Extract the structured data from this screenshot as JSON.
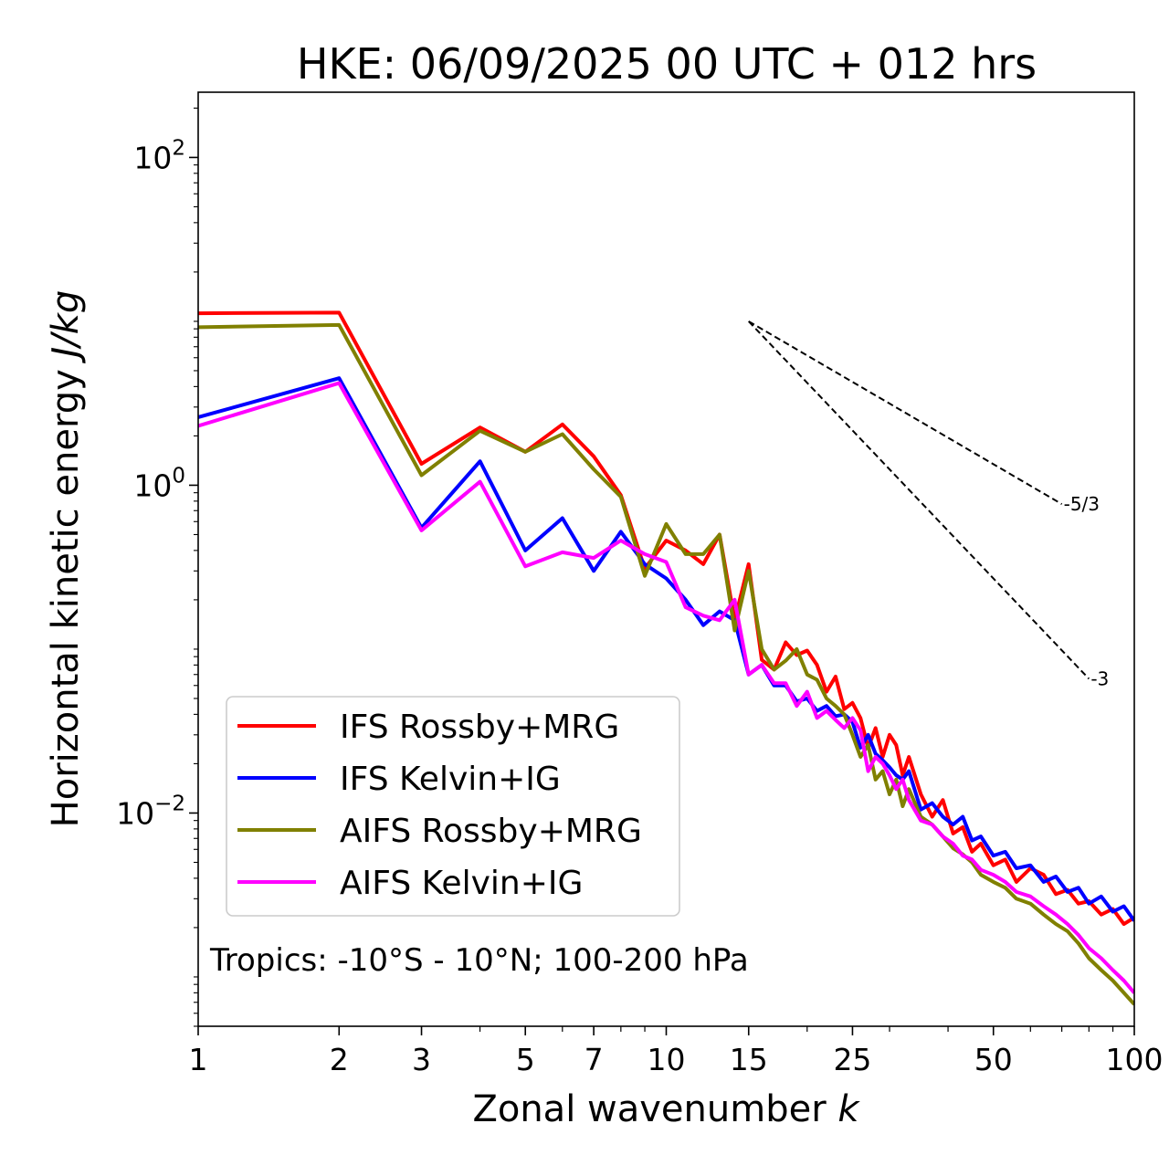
{
  "chart_data": {
    "type": "line",
    "title": "HKE: 06/09/2025 00 UTC + 012 hrs",
    "xlabel": "Zonal wavenumber",
    "xlabel_var": "k",
    "ylabel": "Horizontal kinetic energy",
    "ylabel_units": "J/kg",
    "xscale": "log",
    "yscale": "log",
    "xlim": [
      1,
      100
    ],
    "ylim": [
      0.0005,
      250
    ],
    "xticks": [
      1,
      2,
      3,
      5,
      7,
      10,
      15,
      25,
      50,
      100
    ],
    "xtick_labels": [
      "1",
      "2",
      "3",
      "5",
      "7",
      "10",
      "15",
      "25",
      "50",
      "100"
    ],
    "yticks": [
      {
        "value": 100,
        "base": "10",
        "exp": "2"
      },
      {
        "value": 1,
        "base": "10",
        "exp": "0"
      },
      {
        "value": 0.01,
        "base": "10",
        "exp": "−2"
      }
    ],
    "annotation": "Tropics: -10°S - 10°N; 100-200 hPa",
    "legend_position": "lower-left",
    "series": [
      {
        "name": "IFS Rossby+MRG",
        "color": "#ff0000",
        "points": [
          [
            1,
            11.2
          ],
          [
            2,
            11.3
          ],
          [
            3,
            1.35
          ],
          [
            4,
            2.25
          ],
          [
            5,
            1.6
          ],
          [
            6,
            2.35
          ],
          [
            7,
            1.5
          ],
          [
            8,
            0.87
          ],
          [
            9,
            0.31
          ],
          [
            10,
            0.46
          ],
          [
            11,
            0.4
          ],
          [
            12,
            0.33
          ],
          [
            13,
            0.5
          ],
          [
            14,
            0.15
          ],
          [
            15,
            0.33
          ],
          [
            16,
            0.086
          ],
          [
            17,
            0.075
          ],
          [
            18,
            0.11
          ],
          [
            19,
            0.092
          ],
          [
            20,
            0.098
          ],
          [
            21,
            0.08
          ],
          [
            22,
            0.055
          ],
          [
            23,
            0.068
          ],
          [
            24,
            0.043
          ],
          [
            25,
            0.047
          ],
          [
            26,
            0.038
          ],
          [
            27,
            0.025
          ],
          [
            28,
            0.033
          ],
          [
            29,
            0.022
          ],
          [
            30,
            0.03
          ],
          [
            31,
            0.026
          ],
          [
            32,
            0.017
          ],
          [
            33,
            0.022
          ],
          [
            35,
            0.013
          ],
          [
            37,
            0.0095
          ],
          [
            39,
            0.012
          ],
          [
            41,
            0.0075
          ],
          [
            43,
            0.0082
          ],
          [
            45,
            0.0058
          ],
          [
            47,
            0.0065
          ],
          [
            50,
            0.0048
          ],
          [
            53,
            0.0052
          ],
          [
            56,
            0.0038
          ],
          [
            60,
            0.0046
          ],
          [
            64,
            0.0042
          ],
          [
            68,
            0.0032
          ],
          [
            72,
            0.0034
          ],
          [
            76,
            0.0028
          ],
          [
            80,
            0.0029
          ],
          [
            85,
            0.0024
          ],
          [
            90,
            0.0026
          ],
          [
            95,
            0.0021
          ],
          [
            100,
            0.0023
          ]
        ]
      },
      {
        "name": "IFS Kelvin+IG",
        "color": "#0000ff",
        "points": [
          [
            1,
            2.6
          ],
          [
            2,
            4.5
          ],
          [
            3,
            0.55
          ],
          [
            4,
            1.4
          ],
          [
            5,
            0.4
          ],
          [
            6,
            0.63
          ],
          [
            7,
            0.3
          ],
          [
            8,
            0.52
          ],
          [
            9,
            0.33
          ],
          [
            10,
            0.27
          ],
          [
            11,
            0.2
          ],
          [
            12,
            0.14
          ],
          [
            13,
            0.17
          ],
          [
            14,
            0.15
          ],
          [
            15,
            0.07
          ],
          [
            16,
            0.08
          ],
          [
            17,
            0.06
          ],
          [
            18,
            0.06
          ],
          [
            19,
            0.048
          ],
          [
            20,
            0.05
          ],
          [
            21,
            0.042
          ],
          [
            22,
            0.045
          ],
          [
            23,
            0.039
          ],
          [
            24,
            0.04
          ],
          [
            25,
            0.036
          ],
          [
            26,
            0.025
          ],
          [
            27,
            0.03
          ],
          [
            28,
            0.023
          ],
          [
            29,
            0.021
          ],
          [
            30,
            0.019
          ],
          [
            31,
            0.017
          ],
          [
            32,
            0.016
          ],
          [
            33,
            0.018
          ],
          [
            35,
            0.0105
          ],
          [
            37,
            0.0115
          ],
          [
            39,
            0.0095
          ],
          [
            41,
            0.0085
          ],
          [
            43,
            0.0095
          ],
          [
            45,
            0.0068
          ],
          [
            47,
            0.0072
          ],
          [
            50,
            0.0055
          ],
          [
            53,
            0.0058
          ],
          [
            56,
            0.0046
          ],
          [
            60,
            0.0048
          ],
          [
            64,
            0.0038
          ],
          [
            68,
            0.0041
          ],
          [
            72,
            0.0033
          ],
          [
            76,
            0.0035
          ],
          [
            80,
            0.0028
          ],
          [
            85,
            0.0031
          ],
          [
            90,
            0.0025
          ],
          [
            95,
            0.0027
          ],
          [
            100,
            0.0022
          ]
        ]
      },
      {
        "name": "AIFS Rossby+MRG",
        "color": "#808000",
        "points": [
          [
            1,
            9.2
          ],
          [
            2,
            9.5
          ],
          [
            3,
            1.15
          ],
          [
            4,
            2.15
          ],
          [
            5,
            1.6
          ],
          [
            6,
            2.05
          ],
          [
            7,
            1.25
          ],
          [
            8,
            0.85
          ],
          [
            9,
            0.28
          ],
          [
            10,
            0.58
          ],
          [
            11,
            0.38
          ],
          [
            12,
            0.38
          ],
          [
            13,
            0.5
          ],
          [
            14,
            0.13
          ],
          [
            15,
            0.3
          ],
          [
            16,
            0.1
          ],
          [
            17,
            0.075
          ],
          [
            18,
            0.085
          ],
          [
            19,
            0.1
          ],
          [
            20,
            0.07
          ],
          [
            21,
            0.065
          ],
          [
            22,
            0.05
          ],
          [
            23,
            0.045
          ],
          [
            24,
            0.04
          ],
          [
            25,
            0.03
          ],
          [
            26,
            0.022
          ],
          [
            27,
            0.026
          ],
          [
            28,
            0.016
          ],
          [
            29,
            0.018
          ],
          [
            30,
            0.013
          ],
          [
            31,
            0.016
          ],
          [
            32,
            0.011
          ],
          [
            33,
            0.014
          ],
          [
            35,
            0.0095
          ],
          [
            37,
            0.0085
          ],
          [
            39,
            0.0072
          ],
          [
            41,
            0.0061
          ],
          [
            43,
            0.0056
          ],
          [
            45,
            0.005
          ],
          [
            47,
            0.0042
          ],
          [
            50,
            0.0038
          ],
          [
            53,
            0.0035
          ],
          [
            56,
            0.003
          ],
          [
            60,
            0.0028
          ],
          [
            64,
            0.0024
          ],
          [
            68,
            0.0021
          ],
          [
            72,
            0.0019
          ],
          [
            76,
            0.0016
          ],
          [
            80,
            0.0013
          ],
          [
            85,
            0.0011
          ],
          [
            90,
            0.00095
          ],
          [
            95,
            0.0008
          ],
          [
            100,
            0.00068
          ]
        ]
      },
      {
        "name": "AIFS Kelvin+IG",
        "color": "#ff00ff",
        "points": [
          [
            1,
            2.3
          ],
          [
            2,
            4.2
          ],
          [
            3,
            0.53
          ],
          [
            4,
            1.05
          ],
          [
            5,
            0.32
          ],
          [
            6,
            0.39
          ],
          [
            7,
            0.36
          ],
          [
            8,
            0.46
          ],
          [
            9,
            0.38
          ],
          [
            10,
            0.34
          ],
          [
            11,
            0.18
          ],
          [
            12,
            0.16
          ],
          [
            13,
            0.15
          ],
          [
            14,
            0.2
          ],
          [
            15,
            0.07
          ],
          [
            16,
            0.08
          ],
          [
            17,
            0.062
          ],
          [
            18,
            0.062
          ],
          [
            19,
            0.045
          ],
          [
            20,
            0.055
          ],
          [
            21,
            0.038
          ],
          [
            22,
            0.042
          ],
          [
            23,
            0.037
          ],
          [
            24,
            0.033
          ],
          [
            25,
            0.038
          ],
          [
            26,
            0.032
          ],
          [
            27,
            0.018
          ],
          [
            28,
            0.022
          ],
          [
            29,
            0.02
          ],
          [
            30,
            0.017
          ],
          [
            31,
            0.014
          ],
          [
            32,
            0.016
          ],
          [
            33,
            0.012
          ],
          [
            35,
            0.009
          ],
          [
            37,
            0.0085
          ],
          [
            39,
            0.0072
          ],
          [
            41,
            0.0065
          ],
          [
            43,
            0.0055
          ],
          [
            45,
            0.0052
          ],
          [
            47,
            0.0045
          ],
          [
            50,
            0.0042
          ],
          [
            53,
            0.0038
          ],
          [
            56,
            0.0033
          ],
          [
            60,
            0.0031
          ],
          [
            64,
            0.0027
          ],
          [
            68,
            0.0024
          ],
          [
            72,
            0.0021
          ],
          [
            76,
            0.0018
          ],
          [
            80,
            0.0015
          ],
          [
            85,
            0.0013
          ],
          [
            90,
            0.0011
          ],
          [
            95,
            0.00095
          ],
          [
            100,
            0.0008
          ]
        ]
      }
    ],
    "reference_lines": [
      {
        "label": "-5/3",
        "x_start": 15,
        "y_start": 10,
        "x_end": 70,
        "slope": -1.6667
      },
      {
        "label": "-3",
        "x_start": 15,
        "y_start": 10,
        "x_end": 80,
        "slope": -3
      }
    ]
  }
}
